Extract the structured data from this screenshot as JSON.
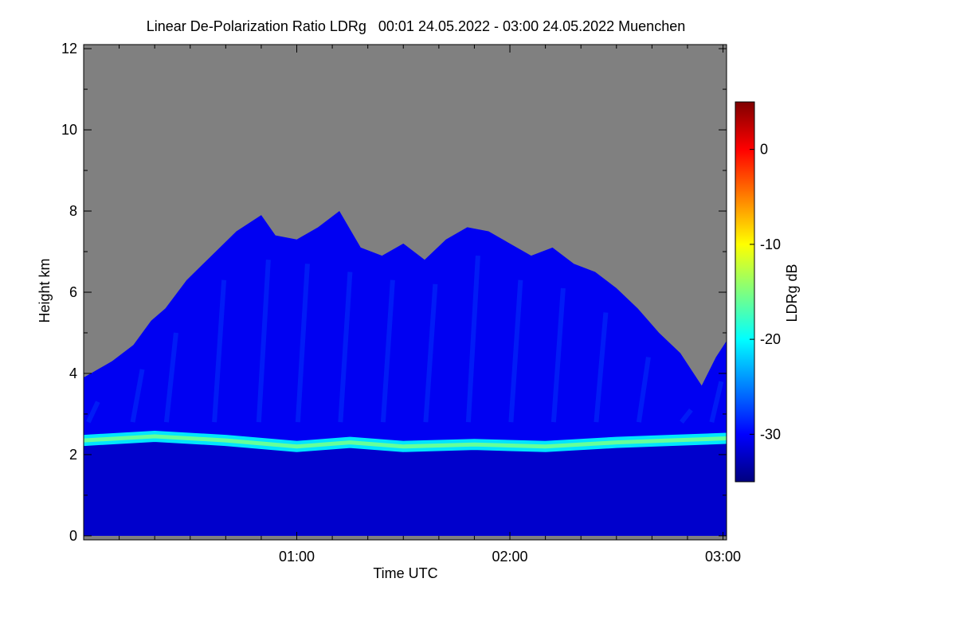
{
  "chart_data": {
    "type": "heatmap",
    "title": "Linear De-Polarization Ratio LDRg   00:01 24.05.2022 - 03:00 24.05.2022 Muenchen",
    "xlabel": "Time UTC",
    "ylabel": "Height km",
    "x_unit": "minutes after 00:00 UTC",
    "xlim": [
      0,
      181
    ],
    "ylim": [
      -0.1,
      12.1
    ],
    "x_ticks": [
      {
        "value": 60,
        "label": "01:00"
      },
      {
        "value": 120,
        "label": "02:00"
      },
      {
        "value": 180,
        "label": "03:00"
      }
    ],
    "y_ticks": [
      {
        "value": 0,
        "label": "0"
      },
      {
        "value": 2,
        "label": "2"
      },
      {
        "value": 4,
        "label": "4"
      },
      {
        "value": 6,
        "label": "6"
      },
      {
        "value": 8,
        "label": "8"
      },
      {
        "value": 10,
        "label": "10"
      },
      {
        "value": 12,
        "label": "12"
      }
    ],
    "no_data_color": "#808080",
    "colorbar": {
      "label": "LDRg dB",
      "range": [
        -35,
        5
      ],
      "colormap": "jet",
      "colors": [
        "#00007f",
        "#0000ff",
        "#007fff",
        "#00ffff",
        "#7fff7f",
        "#ffff00",
        "#ff7f00",
        "#ff0000",
        "#7f0000"
      ],
      "ticks": [
        {
          "value": 0,
          "label": "0"
        },
        {
          "value": -10,
          "label": "-10"
        },
        {
          "value": -20,
          "label": "-20"
        },
        {
          "value": -30,
          "label": "-30"
        }
      ]
    },
    "layers": {
      "boundary_layer": {
        "height_range_km": [
          0.0,
          2.2
        ],
        "ldr_db": -32
      },
      "melting_layer": {
        "ldr_db": -16
      },
      "cloud_top_km": [
        {
          "time_min": 0,
          "top": 3.9
        },
        {
          "time_min": 8,
          "top": 4.3
        },
        {
          "time_min": 14,
          "top": 4.7
        },
        {
          "time_min": 19,
          "top": 5.3
        },
        {
          "time_min": 23,
          "top": 5.6
        },
        {
          "time_min": 29,
          "top": 6.3
        },
        {
          "time_min": 36,
          "top": 6.9
        },
        {
          "time_min": 43,
          "top": 7.5
        },
        {
          "time_min": 50,
          "top": 7.9
        },
        {
          "time_min": 54,
          "top": 7.4
        },
        {
          "time_min": 60,
          "top": 7.3
        },
        {
          "time_min": 66,
          "top": 7.6
        },
        {
          "time_min": 72,
          "top": 8.0
        },
        {
          "time_min": 78,
          "top": 7.1
        },
        {
          "time_min": 84,
          "top": 6.9
        },
        {
          "time_min": 90,
          "top": 7.2
        },
        {
          "time_min": 96,
          "top": 6.8
        },
        {
          "time_min": 102,
          "top": 7.3
        },
        {
          "time_min": 108,
          "top": 7.6
        },
        {
          "time_min": 114,
          "top": 7.5
        },
        {
          "time_min": 120,
          "top": 7.2
        },
        {
          "time_min": 126,
          "top": 6.9
        },
        {
          "time_min": 132,
          "top": 7.1
        },
        {
          "time_min": 138,
          "top": 6.7
        },
        {
          "time_min": 144,
          "top": 6.5
        },
        {
          "time_min": 150,
          "top": 6.1
        },
        {
          "time_min": 156,
          "top": 5.6
        },
        {
          "time_min": 162,
          "top": 5.0
        },
        {
          "time_min": 168,
          "top": 4.5
        },
        {
          "time_min": 174,
          "top": 3.7
        },
        {
          "time_min": 178,
          "top": 4.4
        },
        {
          "time_min": 181,
          "top": 4.8
        }
      ],
      "melting_layer_height_km": [
        {
          "time_min": 0,
          "h": 2.35
        },
        {
          "time_min": 20,
          "h": 2.45
        },
        {
          "time_min": 40,
          "h": 2.35
        },
        {
          "time_min": 60,
          "h": 2.2
        },
        {
          "time_min": 75,
          "h": 2.3
        },
        {
          "time_min": 90,
          "h": 2.2
        },
        {
          "time_min": 110,
          "h": 2.25
        },
        {
          "time_min": 130,
          "h": 2.2
        },
        {
          "time_min": 150,
          "h": 2.3
        },
        {
          "time_min": 165,
          "h": 2.35
        },
        {
          "time_min": 181,
          "h": 2.4
        }
      ]
    }
  }
}
